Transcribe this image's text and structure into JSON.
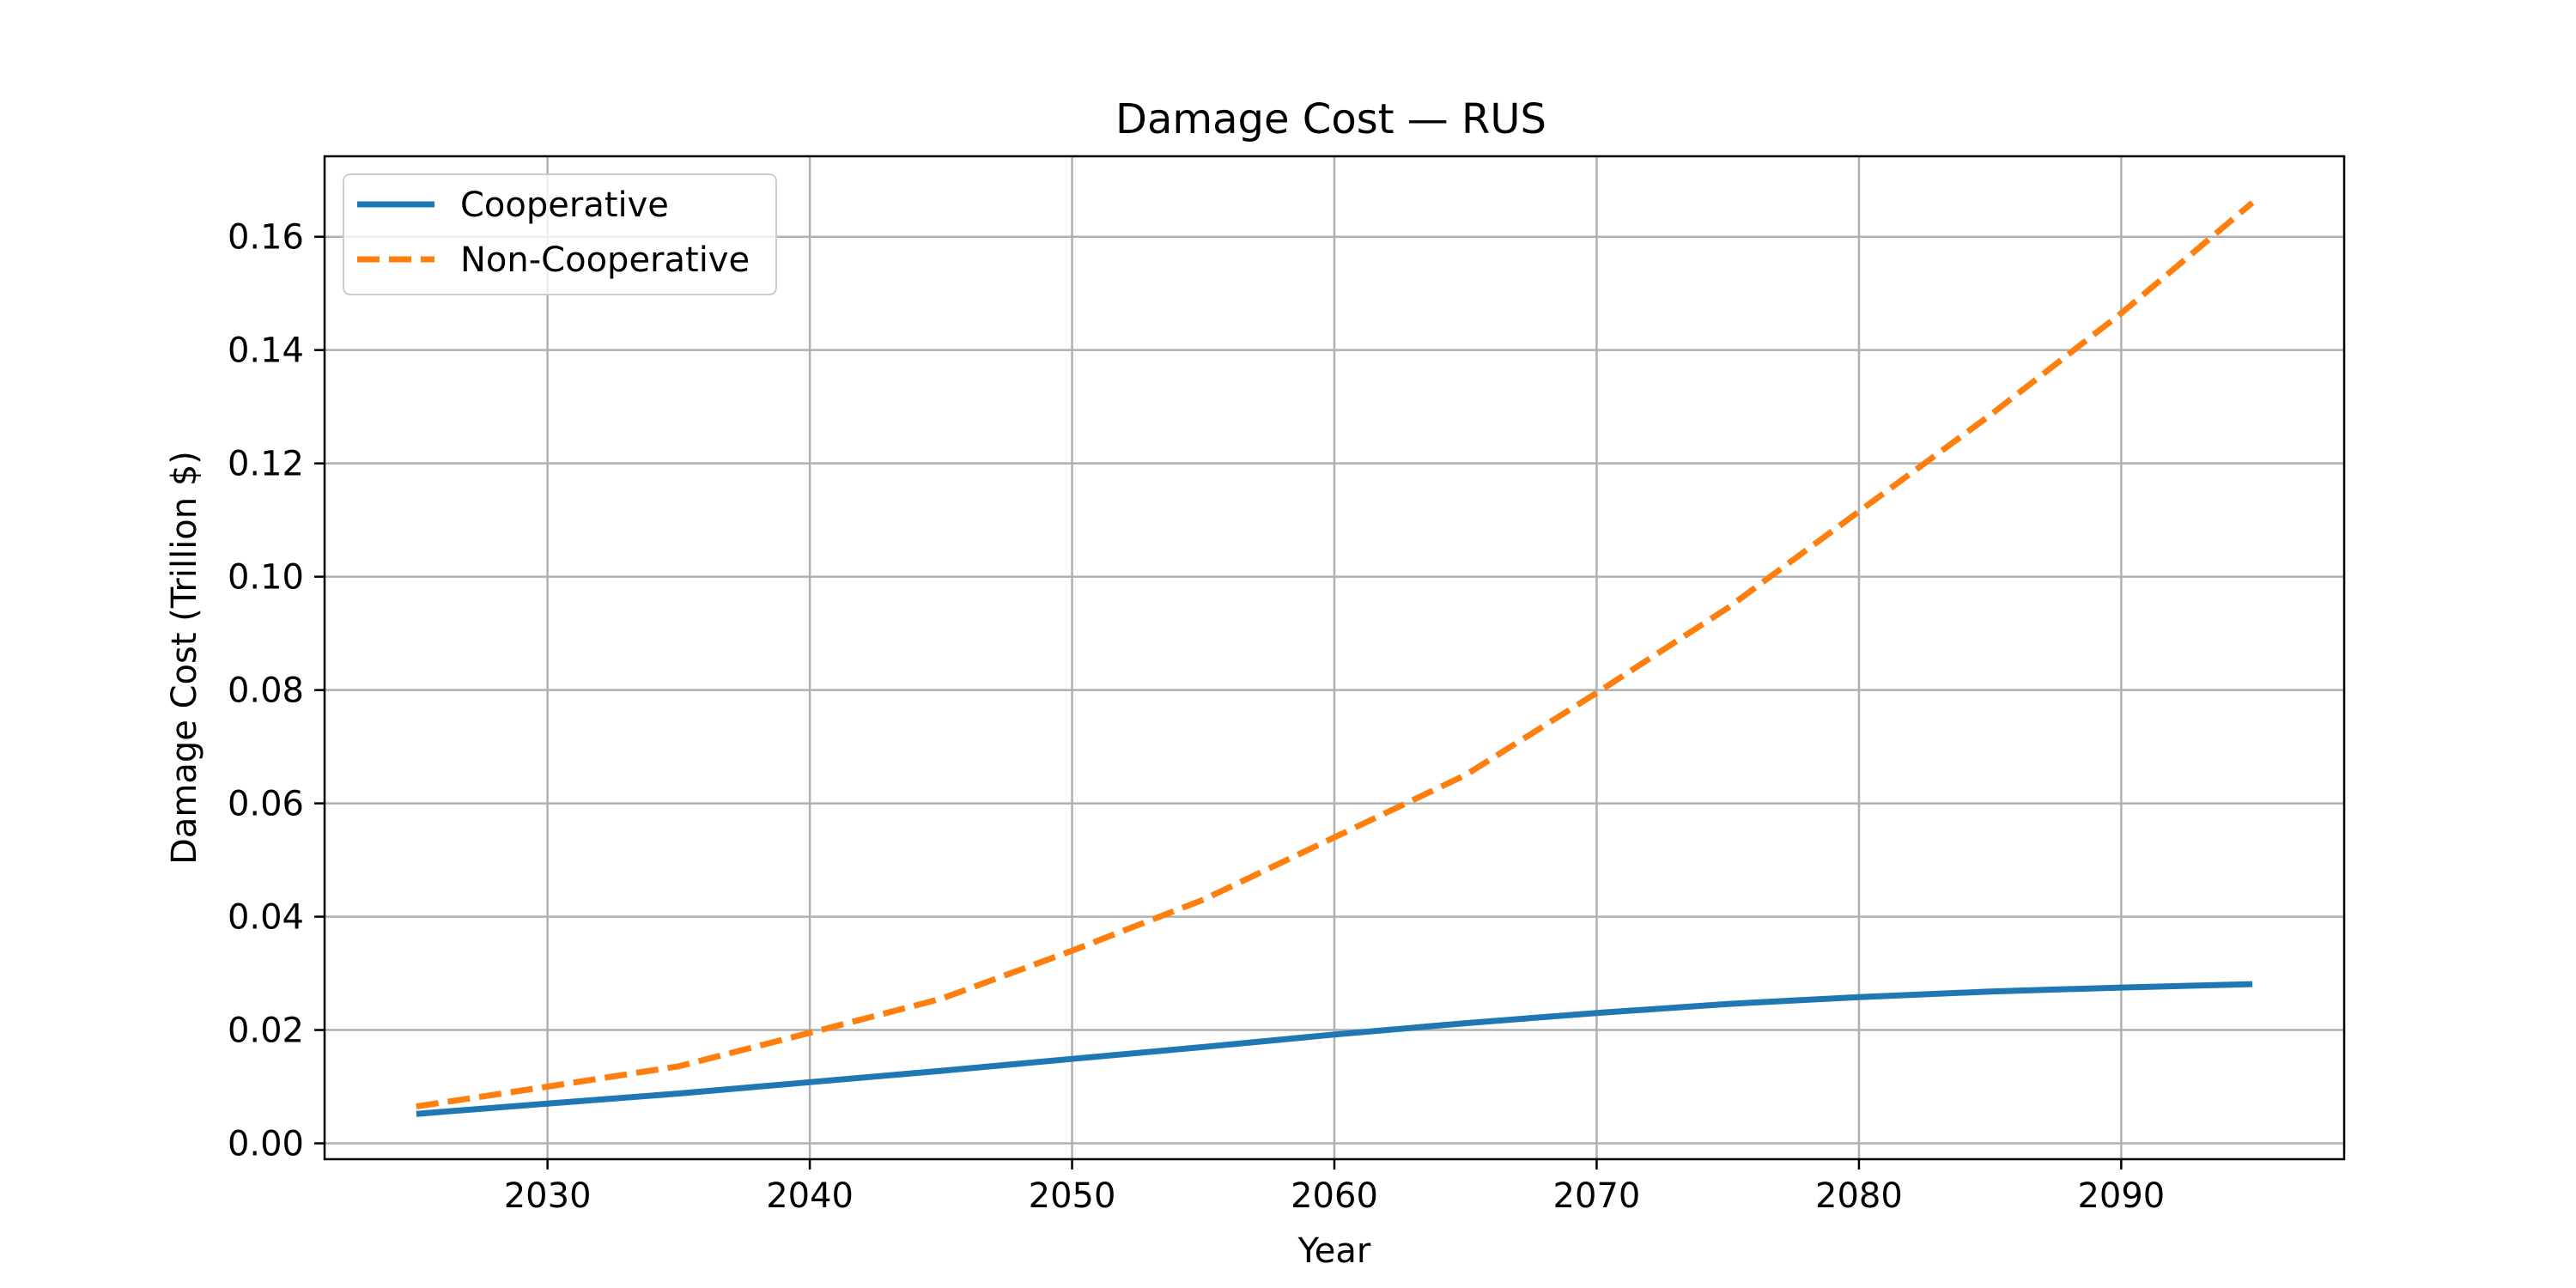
{
  "chart_data": {
    "type": "line",
    "title": "Damage Cost — RUS",
    "xlabel": "Year",
    "ylabel": "Damage Cost (Trillion $)",
    "x": [
      2025,
      2030,
      2035,
      2040,
      2045,
      2050,
      2055,
      2060,
      2065,
      2070,
      2075,
      2080,
      2085,
      2090,
      2095
    ],
    "series": [
      {
        "name": "Cooperative",
        "color": "#1f77b4",
        "style": "solid",
        "values": [
          0.0052,
          0.007,
          0.0088,
          0.0108,
          0.0128,
          0.0149,
          0.017,
          0.0192,
          0.0212,
          0.023,
          0.0246,
          0.0258,
          0.0268,
          0.0275,
          0.0281
        ]
      },
      {
        "name": "Non-Cooperative",
        "color": "#ff7f0e",
        "style": "dashed",
        "values": [
          0.0065,
          0.01,
          0.0136,
          0.0195,
          0.0255,
          0.034,
          0.043,
          0.054,
          0.065,
          0.0795,
          0.0945,
          0.1115,
          0.1285,
          0.1465,
          0.166
        ]
      }
    ],
    "xlim": [
      2021.5,
      2098.5
    ],
    "ylim": [
      -0.0028,
      0.1742
    ],
    "xticks": [
      2030,
      2040,
      2050,
      2060,
      2070,
      2080,
      2090
    ],
    "xtick_labels": [
      "2030",
      "2040",
      "2050",
      "2060",
      "2070",
      "2080",
      "2090"
    ],
    "yticks": [
      0.0,
      0.02,
      0.04,
      0.06,
      0.08,
      0.1,
      0.12,
      0.14,
      0.16
    ],
    "ytick_labels": [
      "0.00",
      "0.02",
      "0.04",
      "0.06",
      "0.08",
      "0.10",
      "0.12",
      "0.14",
      "0.16"
    ],
    "grid": true,
    "legend_position": "top-left"
  }
}
